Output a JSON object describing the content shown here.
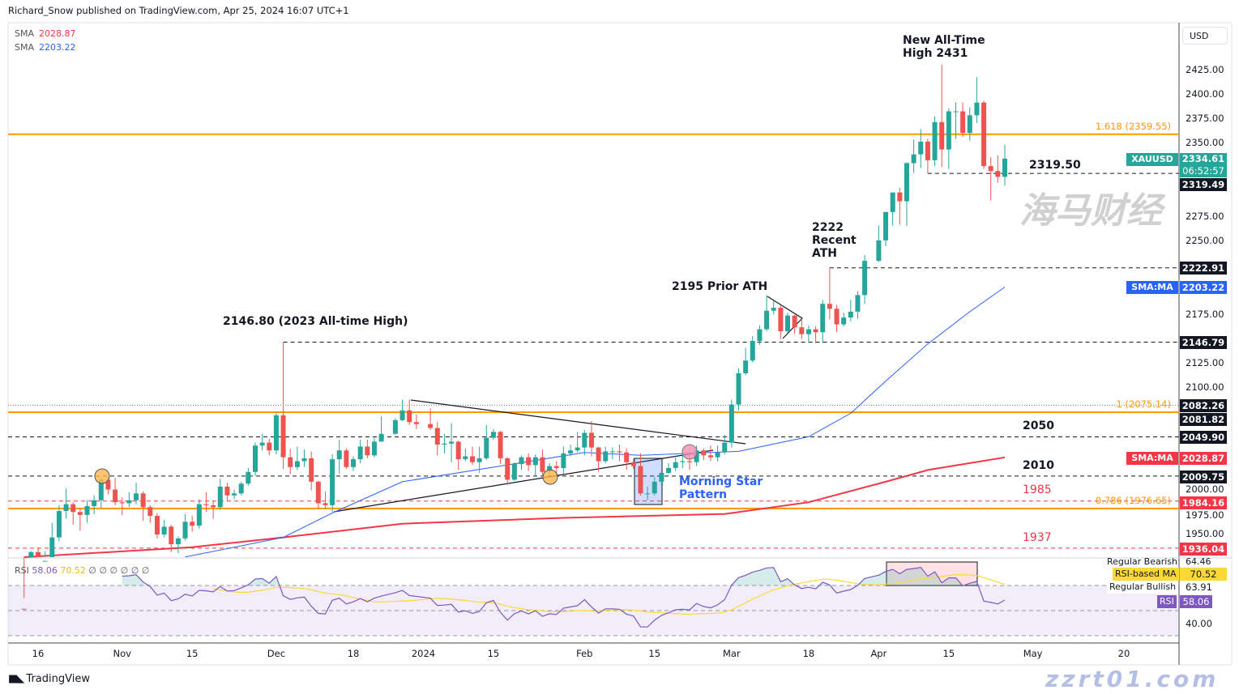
{
  "header": {
    "published": "Richard_Snow published on TradingView.com, Apr 25, 2024 16:07 UTC+1"
  },
  "legend": [
    {
      "label": "SMA",
      "value": "2028.87",
      "color": "#f23645"
    },
    {
      "label": "SMA",
      "value": "2203.22",
      "color": "#2962ff"
    }
  ],
  "currency": "USD",
  "chart_data": {
    "type": "candlestick",
    "symbol": "XAUUSD",
    "title": "",
    "xlabel": "",
    "ylabel": "",
    "ylim": [
      1925,
      2450
    ],
    "y_ticks": [
      "2425.00",
      "2400.00",
      "2375.00",
      "2350.00",
      "2275.00",
      "2250.00",
      "2175.00",
      "2125.00",
      "2100.00",
      "2000.00",
      "1975.00",
      "1950.00"
    ],
    "x_ticks": [
      {
        "date": "2023-10-16",
        "label": "16"
      },
      {
        "date": "2023-11-01",
        "label": "Nov"
      },
      {
        "date": "2023-11-15",
        "label": "15"
      },
      {
        "date": "2023-12-01",
        "label": "Dec"
      },
      {
        "date": "2023-12-18",
        "label": "18"
      },
      {
        "date": "2024-01-01",
        "label": "2024"
      },
      {
        "date": "2024-01-15",
        "label": "15"
      },
      {
        "date": "2024-02-01",
        "label": "Feb"
      },
      {
        "date": "2024-02-15",
        "label": "15"
      },
      {
        "date": "2024-03-01",
        "label": "Mar"
      },
      {
        "date": "2024-03-18",
        "label": "18"
      },
      {
        "date": "2024-04-01",
        "label": "Apr"
      },
      {
        "date": "2024-04-15",
        "label": "15"
      },
      {
        "date": "2024-05-01",
        "label": "May"
      },
      {
        "date": "2024-05-20",
        "label": "20"
      }
    ],
    "candles_ohlc": [
      [
        "2023-10-12",
        1874,
        1885,
        1866,
        1868
      ],
      [
        "2023-10-13",
        1868,
        1933,
        1867,
        1932
      ],
      [
        "2023-10-16",
        1932,
        1937,
        1908,
        1920
      ],
      [
        "2023-10-17",
        1920,
        1933,
        1916,
        1923
      ],
      [
        "2023-10-18",
        1923,
        1962,
        1922,
        1947
      ],
      [
        "2023-10-19",
        1947,
        1980,
        1943,
        1974
      ],
      [
        "2023-10-20",
        1974,
        1997,
        1966,
        1981
      ],
      [
        "2023-10-23",
        1981,
        1983,
        1960,
        1973
      ],
      [
        "2023-10-24",
        1973,
        1977,
        1954,
        1970
      ],
      [
        "2023-10-25",
        1970,
        1985,
        1962,
        1979
      ],
      [
        "2023-10-26",
        1979,
        1990,
        1971,
        1985
      ],
      [
        "2023-10-27",
        1985,
        2009,
        1977,
        2006
      ],
      [
        "2023-10-30",
        2006,
        2009,
        1991,
        1996
      ],
      [
        "2023-10-31",
        1996,
        2008,
        1980,
        1983
      ],
      [
        "2023-11-01",
        1983,
        1988,
        1970,
        1982
      ],
      [
        "2023-11-02",
        1982,
        1993,
        1978,
        1985
      ],
      [
        "2023-11-03",
        1985,
        2003,
        1981,
        1992
      ],
      [
        "2023-11-06",
        1992,
        1994,
        1964,
        1978
      ],
      [
        "2023-11-07",
        1978,
        1980,
        1962,
        1969
      ],
      [
        "2023-11-08",
        1969,
        1972,
        1946,
        1950
      ],
      [
        "2023-11-09",
        1950,
        1965,
        1947,
        1958
      ],
      [
        "2023-11-10",
        1958,
        1960,
        1932,
        1940
      ],
      [
        "2023-11-13",
        1940,
        1948,
        1931,
        1946
      ],
      [
        "2023-11-14",
        1946,
        1971,
        1944,
        1963
      ],
      [
        "2023-11-15",
        1963,
        1969,
        1953,
        1959
      ],
      [
        "2023-11-16",
        1959,
        1986,
        1956,
        1981
      ],
      [
        "2023-11-17",
        1981,
        1993,
        1973,
        1980
      ],
      [
        "2023-11-20",
        1980,
        1984,
        1966,
        1978
      ],
      [
        "2023-11-21",
        1978,
        2007,
        1975,
        1999
      ],
      [
        "2023-11-22",
        1999,
        2003,
        1984,
        1990
      ],
      [
        "2023-11-23",
        1990,
        1996,
        1986,
        1992
      ],
      [
        "2023-11-24",
        1992,
        2004,
        1990,
        2002
      ],
      [
        "2023-11-27",
        2002,
        2018,
        2000,
        2014
      ],
      [
        "2023-11-28",
        2014,
        2044,
        2010,
        2041
      ],
      [
        "2023-11-29",
        2041,
        2053,
        2036,
        2044
      ],
      [
        "2023-11-30",
        2044,
        2048,
        2031,
        2036
      ],
      [
        "2023-12-01",
        2036,
        2075,
        2032,
        2072
      ],
      [
        "2023-12-04",
        2072,
        2146.8,
        2017,
        2029
      ],
      [
        "2023-12-05",
        2029,
        2038,
        2012,
        2019
      ],
      [
        "2023-12-06",
        2019,
        2040,
        2016,
        2025
      ],
      [
        "2023-12-07",
        2025,
        2037,
        2019,
        2028
      ],
      [
        "2023-12-08",
        2028,
        2035,
        1995,
        2004
      ],
      [
        "2023-12-11",
        2004,
        2005,
        1976,
        1982
      ],
      [
        "2023-12-12",
        1982,
        1994,
        1976,
        1980
      ],
      [
        "2023-12-13",
        1980,
        2032,
        1973,
        2027
      ],
      [
        "2023-12-14",
        2027,
        2047,
        2012,
        2036
      ],
      [
        "2023-12-15",
        2036,
        2038,
        2017,
        2019
      ],
      [
        "2023-12-18",
        2019,
        2030,
        2015,
        2027
      ],
      [
        "2023-12-19",
        2027,
        2047,
        2023,
        2040
      ],
      [
        "2023-12-20",
        2040,
        2047,
        2028,
        2031
      ],
      [
        "2023-12-21",
        2031,
        2049,
        2029,
        2045
      ],
      [
        "2023-12-22",
        2045,
        2071,
        2045,
        2053
      ],
      [
        "2023-12-26",
        2053,
        2069,
        2052,
        2067
      ],
      [
        "2023-12-27",
        2067,
        2088,
        2066,
        2077
      ],
      [
        "2023-12-28",
        2077,
        2088,
        2062,
        2065
      ],
      [
        "2023-12-29",
        2065,
        2073,
        2058,
        2063
      ],
      [
        "2024-01-02",
        2063,
        2079,
        2057,
        2059
      ],
      [
        "2024-01-03",
        2059,
        2065,
        2031,
        2042
      ],
      [
        "2024-01-04",
        2042,
        2053,
        2033,
        2043
      ],
      [
        "2024-01-05",
        2043,
        2064,
        2024,
        2045
      ],
      [
        "2024-01-08",
        2045,
        2046,
        2016,
        2027
      ],
      [
        "2024-01-09",
        2027,
        2038,
        2025,
        2030
      ],
      [
        "2024-01-10",
        2030,
        2040,
        2021,
        2024
      ],
      [
        "2024-01-11",
        2024,
        2040,
        2013,
        2028
      ],
      [
        "2024-01-12",
        2028,
        2062,
        2026,
        2049
      ],
      [
        "2024-01-15",
        2049,
        2058,
        2047,
        2055
      ],
      [
        "2024-01-16",
        2055,
        2056,
        2022,
        2028
      ],
      [
        "2024-01-17",
        2028,
        2029,
        2001,
        2006
      ],
      [
        "2024-01-18",
        2006,
        2024,
        2005,
        2022
      ],
      [
        "2024-01-19",
        2022,
        2031,
        2016,
        2029
      ],
      [
        "2024-01-22",
        2029,
        2033,
        2015,
        2021
      ],
      [
        "2024-01-23",
        2021,
        2032,
        2010,
        2029
      ],
      [
        "2024-01-24",
        2029,
        2037,
        2011,
        2014
      ],
      [
        "2024-01-25",
        2014,
        2023,
        2010,
        2020
      ],
      [
        "2024-01-26",
        2020,
        2025,
        2010,
        2018
      ],
      [
        "2024-01-29",
        2018,
        2040,
        2012,
        2033
      ],
      [
        "2024-01-30",
        2033,
        2042,
        2030,
        2036
      ],
      [
        "2024-01-31",
        2036,
        2055,
        2034,
        2039
      ],
      [
        "2024-02-01",
        2039,
        2057,
        2031,
        2054
      ],
      [
        "2024-02-02",
        2054,
        2066,
        2030,
        2039
      ],
      [
        "2024-02-05",
        2039,
        2040,
        2014,
        2025
      ],
      [
        "2024-02-06",
        2025,
        2040,
        2023,
        2035
      ],
      [
        "2024-02-07",
        2035,
        2039,
        2027,
        2035
      ],
      [
        "2024-02-08",
        2035,
        2042,
        2025,
        2034
      ],
      [
        "2024-02-09",
        2034,
        2038,
        2016,
        2024
      ],
      [
        "2024-02-12",
        2024,
        2028,
        2017,
        2020
      ],
      [
        "2024-02-13",
        2020,
        2033,
        1990,
        1992
      ],
      [
        "2024-02-14",
        1992,
        1999,
        1985,
        1992
      ],
      [
        "2024-02-15",
        1992,
        2009,
        1990,
        2004
      ],
      [
        "2024-02-16",
        2004,
        2015,
        1996,
        2013
      ],
      [
        "2024-02-19",
        2013,
        2023,
        2012,
        2018
      ],
      [
        "2024-02-20",
        2018,
        2031,
        2015,
        2024
      ],
      [
        "2024-02-21",
        2024,
        2032,
        2018,
        2025
      ],
      [
        "2024-02-22",
        2025,
        2035,
        2016,
        2024
      ],
      [
        "2024-02-23",
        2024,
        2041,
        2020,
        2036
      ],
      [
        "2024-02-26",
        2036,
        2038,
        2026,
        2031
      ],
      [
        "2024-02-27",
        2031,
        2041,
        2025,
        2029
      ],
      [
        "2024-02-28",
        2029,
        2041,
        2025,
        2034
      ],
      [
        "2024-02-29",
        2034,
        2052,
        2032,
        2044
      ],
      [
        "2024-03-01",
        2044,
        2088,
        2039,
        2083
      ],
      [
        "2024-03-04",
        2083,
        2120,
        2077,
        2115
      ],
      [
        "2024-03-05",
        2115,
        2141,
        2113,
        2128
      ],
      [
        "2024-03-06",
        2128,
        2153,
        2126,
        2148
      ],
      [
        "2024-03-07",
        2148,
        2164,
        2144,
        2160
      ],
      [
        "2024-03-08",
        2160,
        2195,
        2158,
        2179
      ],
      [
        "2024-03-11",
        2179,
        2189,
        2175,
        2182
      ],
      [
        "2024-03-12",
        2182,
        2184,
        2150,
        2158
      ],
      [
        "2024-03-13",
        2158,
        2177,
        2156,
        2174
      ],
      [
        "2024-03-14",
        2174,
        2175,
        2155,
        2162
      ],
      [
        "2024-03-15",
        2162,
        2171,
        2150,
        2155
      ],
      [
        "2024-03-18",
        2155,
        2164,
        2146,
        2160
      ],
      [
        "2024-03-19",
        2160,
        2163,
        2146,
        2157
      ],
      [
        "2024-03-20",
        2157,
        2190,
        2146,
        2186
      ],
      [
        "2024-03-21",
        2186,
        2222.9,
        2170,
        2181
      ],
      [
        "2024-03-22",
        2181,
        2185,
        2157,
        2165
      ],
      [
        "2024-03-25",
        2165,
        2177,
        2163,
        2172
      ],
      [
        "2024-03-26",
        2172,
        2190,
        2168,
        2178
      ],
      [
        "2024-03-27",
        2178,
        2199,
        2171,
        2195
      ],
      [
        "2024-03-28",
        2195,
        2236,
        2186,
        2230
      ],
      [
        "2024-04-01",
        2230,
        2266,
        2229,
        2251
      ],
      [
        "2024-04-02",
        2251,
        2280,
        2245,
        2280
      ],
      [
        "2024-04-03",
        2280,
        2300,
        2266,
        2300
      ],
      [
        "2024-04-04",
        2300,
        2305,
        2267,
        2291
      ],
      [
        "2024-04-05",
        2291,
        2331,
        2266,
        2330
      ],
      [
        "2024-04-08",
        2330,
        2354,
        2320,
        2339
      ],
      [
        "2024-04-09",
        2339,
        2365,
        2325,
        2352
      ],
      [
        "2024-04-10",
        2352,
        2355,
        2319.5,
        2333
      ],
      [
        "2024-04-11",
        2333,
        2378,
        2327,
        2372
      ],
      [
        "2024-04-12",
        2372,
        2431,
        2326,
        2344
      ],
      [
        "2024-04-15",
        2344,
        2386,
        2324,
        2383
      ],
      [
        "2024-04-16",
        2383,
        2392,
        2355,
        2383
      ],
      [
        "2024-04-17",
        2383,
        2392,
        2357,
        2361
      ],
      [
        "2024-04-18",
        2361,
        2387,
        2353,
        2379
      ],
      [
        "2024-04-19",
        2379,
        2418,
        2371,
        2392
      ],
      [
        "2024-04-22",
        2392,
        2394,
        2324,
        2327
      ],
      [
        "2024-04-23",
        2327,
        2336,
        2292,
        2322
      ],
      [
        "2024-04-24",
        2322,
        2338,
        2310,
        2316
      ],
      [
        "2024-04-25",
        2316,
        2349,
        2307,
        2334.61
      ]
    ],
    "sma_fast": [
      [
        "2023-11-14",
        1927
      ],
      [
        "2023-12-04",
        1947
      ],
      [
        "2023-12-13",
        1972
      ],
      [
        "2023-12-27",
        2004
      ],
      [
        "2024-01-16",
        2020
      ],
      [
        "2024-02-01",
        2034
      ],
      [
        "2024-02-13",
        2031
      ],
      [
        "2024-03-04",
        2035
      ],
      [
        "2024-03-18",
        2050
      ],
      [
        "2024-03-26",
        2074
      ],
      [
        "2024-04-02",
        2107
      ],
      [
        "2024-04-10",
        2145
      ],
      [
        "2024-04-18",
        2178
      ],
      [
        "2024-04-25",
        2203.22
      ]
    ],
    "sma_slow": [
      [
        "2023-10-12",
        1926
      ],
      [
        "2023-11-15",
        1937
      ],
      [
        "2023-12-04",
        1947
      ],
      [
        "2023-12-27",
        1961
      ],
      [
        "2024-01-29",
        1967
      ],
      [
        "2024-02-29",
        1971
      ],
      [
        "2024-03-18",
        1983
      ],
      [
        "2024-04-02",
        2004
      ],
      [
        "2024-04-10",
        2016
      ],
      [
        "2024-04-25",
        2028.87
      ]
    ],
    "colors": {
      "up": "#26a69a",
      "down": "#ef5350",
      "sma_fast": "#2962ff",
      "sma_slow": "#f23645",
      "fib": "#ff9800",
      "rsi": "#7e57c2",
      "rsi_ma": "#fdd835"
    },
    "levels": [
      {
        "price": 2359.55,
        "style": "solid",
        "color": "#ff9800",
        "label": "1.618 (2359.55)"
      },
      {
        "price": 2319.5,
        "style": "dashed",
        "color": "#131722",
        "from": "2024-04-10",
        "label": "2319.50"
      },
      {
        "price": 2222.91,
        "style": "dashed",
        "color": "#131722",
        "from": "2024-03-21"
      },
      {
        "price": 2146.79,
        "style": "dashed",
        "color": "#131722",
        "from": "2023-12-04"
      },
      {
        "price": 2082.26,
        "style": "dotted",
        "color": "#787b86"
      },
      {
        "price": 2075.14,
        "style": "solid",
        "color": "#ff9800",
        "label": "1 (2075.14)"
      },
      {
        "price": 2049.9,
        "style": "dashed",
        "color": "#131722",
        "label": "2050"
      },
      {
        "price": 2009.75,
        "style": "dashed",
        "color": "#131722",
        "label": "2010"
      },
      {
        "price": 1984.16,
        "style": "dashed",
        "color": "#f23645",
        "label": "1985"
      },
      {
        "price": 1976.65,
        "style": "solid",
        "color": "#ff9800",
        "label": "0.786 (1976.65)"
      },
      {
        "price": 1936.04,
        "style": "dashed",
        "color": "#f23645",
        "label": "1937"
      }
    ],
    "annotations": {
      "ath_2023": "2146.80 (2023 All-time High)",
      "prior_ath": "2195 Prior ATH",
      "recent_ath": "2222\nRecent\nATH",
      "new_ath": "New All-Time\nHigh 2431",
      "morning_star": "Morning Star\nPattern"
    },
    "price_labels": [
      {
        "value": "2334.61",
        "sub": "06:52:57",
        "color": "#26a69a",
        "chip": "XAUUSD"
      },
      {
        "value": "2319.49",
        "color": "#131722"
      },
      {
        "value": "2222.91",
        "color": "#131722"
      },
      {
        "value": "2203.22",
        "color": "#2962ff",
        "chip": "SMA:MA"
      },
      {
        "value": "2146.79",
        "color": "#131722"
      },
      {
        "value": "2082.26",
        "color": "#131722"
      },
      {
        "value": "2081.82",
        "color": "#131722"
      },
      {
        "value": "2049.90",
        "color": "#131722"
      },
      {
        "value": "2028.87",
        "color": "#f23645",
        "chip": "SMA:MA"
      },
      {
        "value": "2009.75",
        "color": "#131722"
      },
      {
        "value": "1984.16",
        "color": "#f23645"
      },
      {
        "value": "1936.04",
        "color": "#f23645"
      }
    ],
    "rsi": {
      "label": "RSI",
      "value": "58.06",
      "ma_value": "70.52",
      "extra": "∅ ∅ ∅ ∅ ∅ ∅",
      "levels": [
        70,
        50,
        30
      ],
      "axis_labels": [
        {
          "chip": "Regular Bearish",
          "value": "64.46"
        },
        {
          "chip": "RSI-based MA",
          "value": "70.52",
          "color": "#fdd835"
        },
        {
          "chip": "Regular Bullish",
          "value": "63.91"
        },
        {
          "chip": "RSI",
          "value": "58.06",
          "color": "#7e57c2"
        },
        {
          "value": "40.00"
        }
      ]
    }
  },
  "footer": {
    "brand": "TradingView"
  },
  "watermark": {
    "cn": "海马财经",
    "url": "zzrt01.com"
  }
}
